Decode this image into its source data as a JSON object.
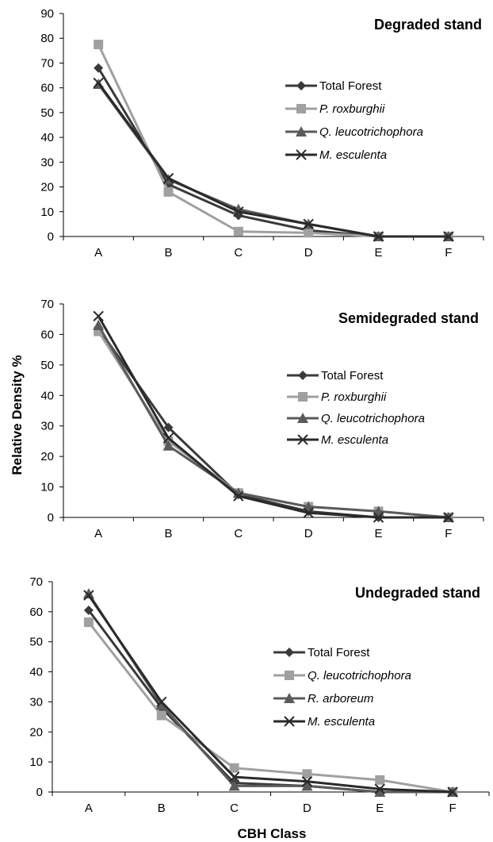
{
  "chart_data": [
    {
      "type": "line",
      "title": "Degraded stand",
      "categories": [
        "A",
        "B",
        "C",
        "D",
        "E",
        "F"
      ],
      "ylim": [
        0,
        90
      ],
      "yticks": [
        0,
        10,
        20,
        30,
        40,
        50,
        60,
        70,
        80,
        90
      ],
      "legend_position": "right",
      "series": [
        {
          "name": "Total Forest",
          "italic": false,
          "marker": "diamond",
          "color": "#3a3a3a",
          "values": [
            68,
            21,
            8.5,
            2.5,
            0,
            0
          ]
        },
        {
          "name": "P. roxburghii",
          "italic": true,
          "marker": "square",
          "color": "#a0a0a0",
          "values": [
            77.5,
            18,
            2,
            1.5,
            0,
            0
          ]
        },
        {
          "name": "Q. leucotrichophora",
          "italic": true,
          "marker": "triangle",
          "color": "#5a5a5a",
          "values": [
            61.5,
            23,
            11,
            5,
            0,
            0
          ]
        },
        {
          "name": "M. esculenta",
          "italic": true,
          "marker": "x",
          "color": "#2a2a2a",
          "values": [
            62,
            23.5,
            10,
            5,
            0,
            0
          ]
        }
      ]
    },
    {
      "type": "line",
      "title": "Semidegraded stand",
      "categories": [
        "A",
        "B",
        "C",
        "D",
        "E",
        "F"
      ],
      "ylim": [
        0,
        70
      ],
      "yticks": [
        0,
        10,
        20,
        30,
        40,
        50,
        60,
        70
      ],
      "legend_position": "right",
      "series": [
        {
          "name": "Total Forest",
          "italic": false,
          "marker": "diamond",
          "color": "#3a3a3a",
          "values": [
            62,
            29.5,
            7.5,
            2,
            0,
            0
          ]
        },
        {
          "name": "P. roxburghii",
          "italic": true,
          "marker": "square",
          "color": "#a0a0a0",
          "values": [
            61,
            25,
            8,
            3.5,
            2,
            0
          ]
        },
        {
          "name": "Q. leucotrichophora",
          "italic": true,
          "marker": "triangle",
          "color": "#5a5a5a",
          "values": [
            63,
            23.5,
            8,
            3.5,
            2,
            0
          ]
        },
        {
          "name": "M. esculenta",
          "italic": true,
          "marker": "x",
          "color": "#2a2a2a",
          "values": [
            66,
            26,
            7,
            1.5,
            0,
            0
          ]
        }
      ]
    },
    {
      "type": "line",
      "title": "Undegraded stand",
      "categories": [
        "A",
        "B",
        "C",
        "D",
        "E",
        "F"
      ],
      "ylim": [
        0,
        70
      ],
      "yticks": [
        0,
        10,
        20,
        30,
        40,
        50,
        60,
        70
      ],
      "legend_position": "right",
      "series": [
        {
          "name": "Total Forest",
          "italic": false,
          "marker": "diamond",
          "color": "#3a3a3a",
          "values": [
            60.5,
            28,
            3,
            2,
            0,
            0
          ]
        },
        {
          "name": "Q. leucotrichophora",
          "italic": true,
          "marker": "square",
          "color": "#a0a0a0",
          "values": [
            56.5,
            25.5,
            8,
            6,
            4,
            0
          ]
        },
        {
          "name": "R. arboreum",
          "italic": true,
          "marker": "triangle",
          "color": "#5a5a5a",
          "values": [
            66,
            29,
            2,
            2,
            0,
            0
          ]
        },
        {
          "name": "M. esculenta",
          "italic": true,
          "marker": "x",
          "color": "#2a2a2a",
          "values": [
            65.5,
            30,
            5,
            3.5,
            1,
            0
          ]
        }
      ]
    }
  ],
  "axis_labels": {
    "ylabel": "Relative Density %",
    "xlabel": "CBH Class"
  }
}
